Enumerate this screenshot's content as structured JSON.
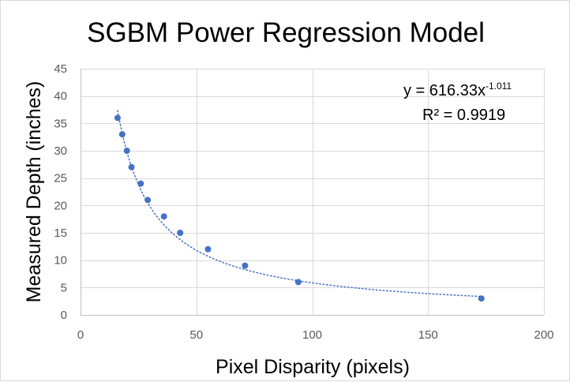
{
  "chart_data": {
    "type": "scatter",
    "title": "SGBM Power Regression Model",
    "xlabel": "Pixel Disparity (pixels)",
    "ylabel": "Measured Depth (inches)",
    "xlim": [
      0,
      200
    ],
    "ylim": [
      0,
      45
    ],
    "x_ticks": [
      0,
      50,
      100,
      150,
      200
    ],
    "y_ticks": [
      0,
      5,
      10,
      15,
      20,
      25,
      30,
      35,
      40,
      45
    ],
    "x_tick_labels": [
      "0",
      "50",
      "100",
      "150",
      "200"
    ],
    "y_tick_labels": [
      "0",
      "5",
      "10",
      "15",
      "20",
      "25",
      "30",
      "35",
      "40",
      "45"
    ],
    "grid": true,
    "series": [
      {
        "color": "#4472c4",
        "x": [
          16,
          18,
          20,
          22,
          26,
          29,
          36,
          43,
          55,
          71,
          94,
          173
        ],
        "y": [
          36,
          33,
          30,
          27,
          24,
          21,
          18,
          15,
          12,
          9,
          6,
          3
        ]
      }
    ],
    "trendline": {
      "type": "power",
      "coefficient": 616.33,
      "exponent": -1.011,
      "r_squared": 0.9919,
      "x_range": [
        16,
        173
      ],
      "color": "#4472c4",
      "style": "dotted"
    },
    "annotation": {
      "equation_base": "y = 616.33x",
      "equation_exponent": "-1.011",
      "r_squared_text": "R² = 0.9919"
    }
  }
}
